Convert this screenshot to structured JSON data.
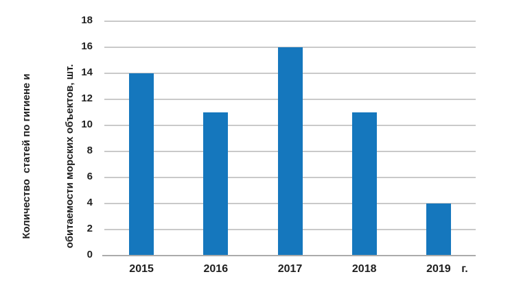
{
  "chart_data": {
    "type": "bar",
    "categories": [
      "2015",
      "2016",
      "2017",
      "2018",
      "2019"
    ],
    "values": [
      14,
      11,
      16,
      11,
      4
    ],
    "title": "",
    "xlabel": "г.",
    "ylabel": "Количество  статей по гигиене и обитаемости морских объектов, шт.",
    "ylabel_lines": [
      "Количество  статей по гигиене и",
      "обитаемости морских объектов, шт."
    ],
    "yticks": [
      0,
      2,
      4,
      6,
      8,
      10,
      12,
      14,
      16,
      18
    ],
    "ylim": [
      0,
      18
    ],
    "grid": true,
    "legend": false,
    "colors": {
      "bar": "#1577bd",
      "gridline": "#c9c9c9",
      "axis_line": "#ababab",
      "text": "#1e1e1e"
    }
  }
}
